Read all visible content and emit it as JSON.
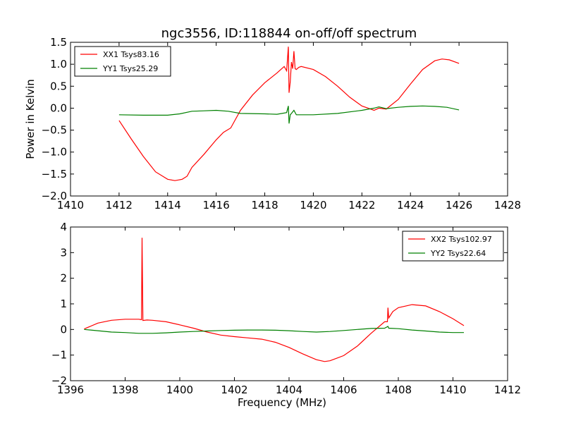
{
  "figure": {
    "title": "ngc3556, ID:118844 on-off/off spectrum"
  },
  "colors": {
    "xx": "#ff0000",
    "yy": "#008000"
  },
  "chart_data": [
    {
      "type": "line",
      "title": "ngc3556, ID:118844 on-off/off spectrum",
      "xlabel": "",
      "ylabel": "Power in Kelvin",
      "xlim": [
        1410,
        1428
      ],
      "ylim": [
        -2.0,
        1.5
      ],
      "xticks": [
        "1410",
        "1412",
        "1414",
        "1416",
        "1418",
        "1420",
        "1422",
        "1424",
        "1426",
        "1428"
      ],
      "yticks": [
        "−2.0",
        "−1.5",
        "−1.0",
        "−0.5",
        "0.0",
        "0.5",
        "1.0",
        "1.5"
      ],
      "grid": false,
      "legend_position": "top-left",
      "series": [
        {
          "name": "XX1 Tsys83.16",
          "color": "#ff0000",
          "x": [
            1412.0,
            1412.5,
            1413.0,
            1413.5,
            1414.0,
            1414.3,
            1414.6,
            1414.8,
            1415.0,
            1415.5,
            1416.0,
            1416.3,
            1416.6,
            1417.0,
            1417.5,
            1418.0,
            1418.5,
            1418.8,
            1418.9,
            1418.97,
            1419.0,
            1419.05,
            1419.1,
            1419.15,
            1419.2,
            1419.25,
            1419.3,
            1419.4,
            1419.5,
            1420.0,
            1420.5,
            1421.0,
            1421.5,
            1422.0,
            1422.5,
            1422.7,
            1423.0,
            1423.5,
            1424.0,
            1424.5,
            1425.0,
            1425.3,
            1425.6,
            1426.0
          ],
          "y": [
            -0.28,
            -0.7,
            -1.1,
            -1.45,
            -1.62,
            -1.65,
            -1.62,
            -1.55,
            -1.35,
            -1.05,
            -0.72,
            -0.55,
            -0.45,
            -0.05,
            0.3,
            0.58,
            0.8,
            0.95,
            0.85,
            1.4,
            0.35,
            0.6,
            1.05,
            0.9,
            1.3,
            0.9,
            0.88,
            0.93,
            0.95,
            0.88,
            0.72,
            0.5,
            0.25,
            0.05,
            -0.05,
            0.0,
            -0.02,
            0.2,
            0.55,
            0.88,
            1.08,
            1.12,
            1.1,
            1.02
          ]
        },
        {
          "name": "YY1 Tsys25.29",
          "color": "#008000",
          "x": [
            1412.0,
            1413.0,
            1414.0,
            1414.5,
            1415.0,
            1415.5,
            1416.0,
            1416.5,
            1417.0,
            1418.0,
            1418.5,
            1418.9,
            1418.97,
            1419.0,
            1419.05,
            1419.1,
            1419.2,
            1419.3,
            1420.0,
            1421.0,
            1422.0,
            1422.5,
            1422.7,
            1423.0,
            1423.5,
            1424.0,
            1424.5,
            1425.0,
            1425.5,
            1426.0
          ],
          "y": [
            -0.15,
            -0.16,
            -0.16,
            -0.13,
            -0.07,
            -0.06,
            -0.05,
            -0.07,
            -0.12,
            -0.13,
            -0.14,
            -0.1,
            0.05,
            -0.35,
            -0.15,
            -0.12,
            -0.05,
            -0.15,
            -0.15,
            -0.12,
            -0.05,
            0.0,
            0.03,
            -0.01,
            0.02,
            0.04,
            0.05,
            0.04,
            0.02,
            -0.04
          ]
        }
      ]
    },
    {
      "type": "line",
      "title": "",
      "xlabel": "Frequency (MHz)",
      "ylabel": "",
      "xlim": [
        1396,
        1412
      ],
      "ylim": [
        -2,
        4
      ],
      "xticks": [
        "1396",
        "1398",
        "1400",
        "1402",
        "1404",
        "1406",
        "1408",
        "1410",
        "1412"
      ],
      "yticks": [
        "−2",
        "−1",
        "0",
        "1",
        "2",
        "3",
        "4"
      ],
      "grid": false,
      "legend_position": "top-right",
      "series": [
        {
          "name": "XX2 Tsys102.97",
          "color": "#ff0000",
          "x": [
            1396.5,
            1397.0,
            1397.5,
            1398.0,
            1398.5,
            1398.6,
            1398.62,
            1398.65,
            1398.8,
            1399.0,
            1399.5,
            1400.0,
            1400.5,
            1401.0,
            1401.5,
            1402.0,
            1402.5,
            1403.0,
            1403.5,
            1404.0,
            1404.5,
            1405.0,
            1405.3,
            1405.5,
            1406.0,
            1406.5,
            1407.0,
            1407.5,
            1407.6,
            1407.62,
            1407.65,
            1407.8,
            1408.0,
            1408.5,
            1409.0,
            1409.5,
            1410.0,
            1410.4
          ],
          "y": [
            0.02,
            0.25,
            0.36,
            0.4,
            0.4,
            0.38,
            3.58,
            0.35,
            0.37,
            0.36,
            0.3,
            0.18,
            0.05,
            -0.1,
            -0.22,
            -0.28,
            -0.33,
            -0.38,
            -0.5,
            -0.7,
            -0.95,
            -1.18,
            -1.25,
            -1.22,
            -1.02,
            -0.65,
            -0.15,
            0.3,
            0.3,
            0.85,
            0.45,
            0.7,
            0.85,
            0.97,
            0.92,
            0.7,
            0.42,
            0.15
          ]
        },
        {
          "name": "YY2 Tsys22.64",
          "color": "#008000",
          "x": [
            1396.5,
            1397.0,
            1397.5,
            1398.0,
            1398.5,
            1399.0,
            1399.5,
            1400.0,
            1400.5,
            1401.0,
            1401.5,
            1402.0,
            1402.5,
            1403.0,
            1403.5,
            1404.0,
            1404.5,
            1405.0,
            1405.5,
            1406.0,
            1406.5,
            1407.0,
            1407.5,
            1407.62,
            1407.65,
            1408.0,
            1408.5,
            1409.0,
            1409.5,
            1410.0,
            1410.4
          ],
          "y": [
            0.0,
            -0.05,
            -0.1,
            -0.12,
            -0.15,
            -0.15,
            -0.13,
            -0.1,
            -0.08,
            -0.06,
            -0.04,
            -0.03,
            -0.02,
            -0.02,
            -0.03,
            -0.05,
            -0.08,
            -0.1,
            -0.08,
            -0.04,
            0.0,
            0.04,
            0.05,
            0.12,
            0.05,
            0.03,
            -0.02,
            -0.06,
            -0.1,
            -0.12,
            -0.12
          ]
        }
      ]
    }
  ]
}
